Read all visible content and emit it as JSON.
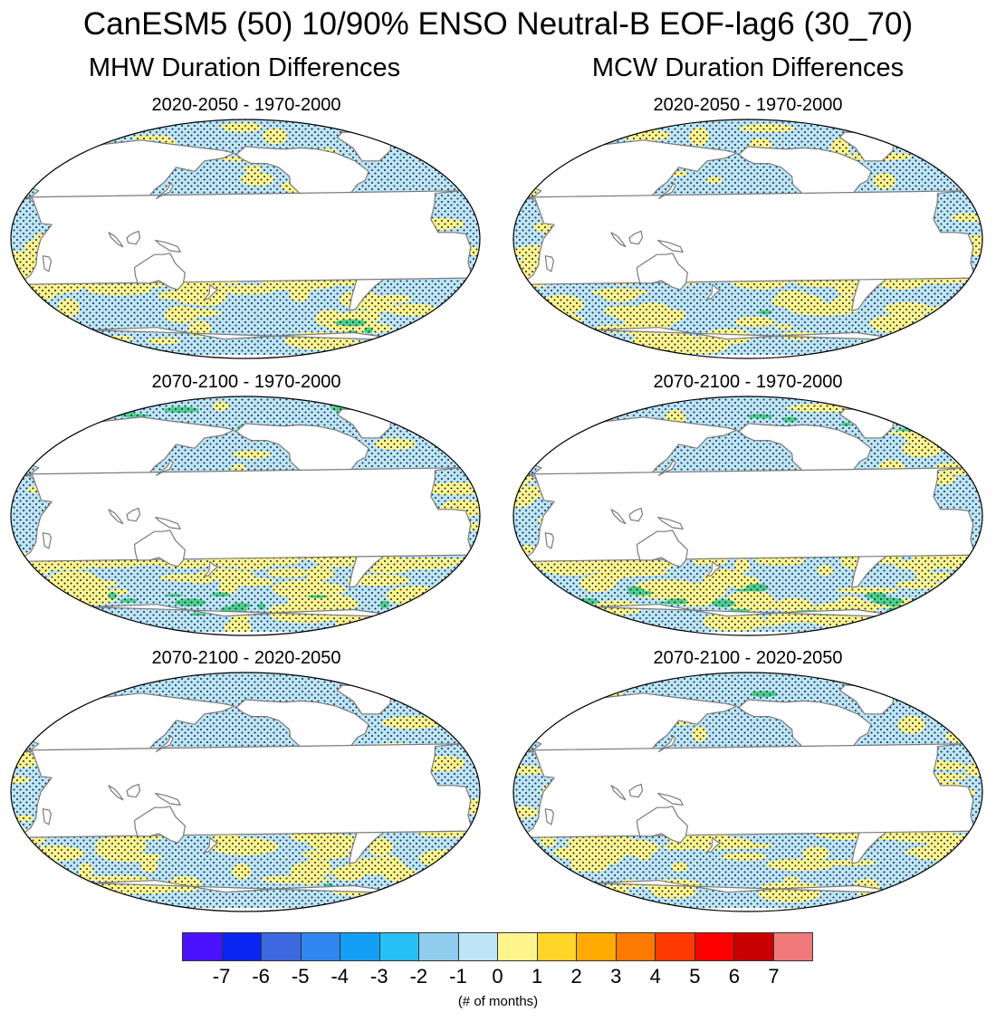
{
  "title": "CanESM5 (50) 10/90% ENSO Neutral-B EOF-lag6 (30_70)",
  "columns": [
    {
      "title": "MHW Duration Differences"
    },
    {
      "title": "MCW Duration Differences"
    }
  ],
  "panels": [
    {
      "title": "2020-2050 - 1970-2000",
      "variable": "MHW"
    },
    {
      "title": "2020-2050 - 1970-2000",
      "variable": "MCW"
    },
    {
      "title": "2070-2100 - 1970-2000",
      "variable": "MHW"
    },
    {
      "title": "2070-2100 - 1970-2000",
      "variable": "MCW"
    },
    {
      "title": "2070-2100 - 2020-2050",
      "variable": "MHW"
    },
    {
      "title": "2070-2100 - 2020-2050",
      "variable": "MCW"
    }
  ],
  "colorbar": {
    "labels": [
      "-7",
      "-6",
      "-5",
      "-4",
      "-3",
      "-2",
      "-1",
      "0",
      "1",
      "2",
      "3",
      "4",
      "5",
      "6",
      "7"
    ],
    "colors": [
      "#4a12ff",
      "#0a24f2",
      "#3c68e0",
      "#2f86f0",
      "#139ff5",
      "#27c0f5",
      "#8fccee",
      "#bde5f5",
      "#fff58c",
      "#ffd52a",
      "#ffaa00",
      "#ff7a00",
      "#ff3a00",
      "#ff0000",
      "#c80000",
      "#f07a7a"
    ],
    "units": "(# of months)"
  },
  "colors": {
    "land": "#ffffff",
    "ocean_negative": "#bde5f5",
    "ocean_positive": "#fff58c",
    "stipple": "#1a2a4a",
    "coastline": "#7a7a7a"
  }
}
